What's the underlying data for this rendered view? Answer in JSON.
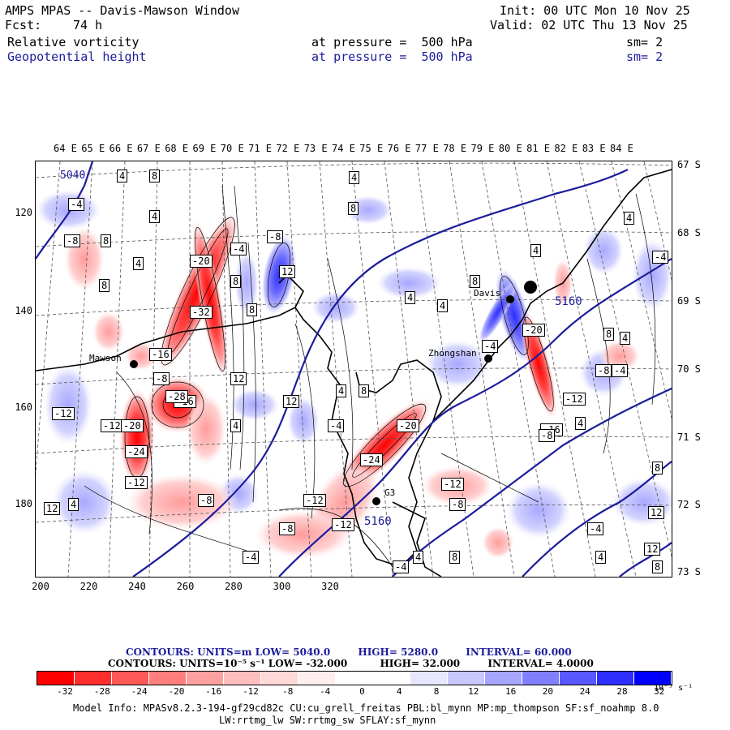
{
  "header": {
    "title": "AMPS MPAS -- Davis-Mawson Window",
    "fcst_label": "Fcst:",
    "fcst_value": "74 h",
    "init": "Init: 00 UTC Mon 10 Nov 25",
    "valid": "Valid: 02 UTC Thu 13 Nov 25",
    "field1": "Relative vorticity",
    "field1_level": "at pressure =  500 hPa",
    "field1_sm": "sm= 2",
    "field2": "Geopotential height",
    "field2_level": "at pressure =  500 hPa",
    "field2_sm": "sm= 2"
  },
  "axes": {
    "lon_labels": [
      "64 E",
      "65 E",
      "66 E",
      "67 E",
      "68 E",
      "69 E",
      "70 E",
      "71 E",
      "72 E",
      "73 E",
      "74 E",
      "75 E",
      "76 E",
      "77 E",
      "78 E",
      "79 E",
      "80 E",
      "81 E",
      "82 E",
      "83 E",
      "84 E"
    ],
    "lat_labels": [
      "67 S",
      "68 S",
      "69 S",
      "70 S",
      "71 S",
      "72 S",
      "73 S"
    ],
    "y_labels": [
      "120",
      "140",
      "160",
      "180"
    ],
    "x_labels": [
      "200",
      "220",
      "240",
      "260",
      "280",
      "300",
      "320"
    ]
  },
  "stations": {
    "mawson": "Mawson",
    "zhongshan": "Zhongshan",
    "davis": "Davis",
    "g3": "G3"
  },
  "contour_labels": {
    "height_5040": "5040",
    "height_5160_a": "5160",
    "height_5160_b": "5160",
    "vals": [
      "4",
      "8",
      "-4",
      "-8",
      "8",
      "4",
      "-8",
      "4",
      "8",
      "-20",
      "-4",
      "4",
      "12",
      "8",
      "-32",
      "-16",
      "8",
      "8",
      "4",
      "4",
      "8",
      "-4",
      "-8",
      "-12",
      "-16",
      "-20",
      "-24",
      "-28",
      "-12",
      "12",
      "-20",
      "-24",
      "-12",
      "-8",
      "-4",
      "-12",
      "-8",
      "4",
      "8",
      "-12",
      "12",
      "4",
      "8",
      "-4",
      "-12",
      "-8",
      "-4",
      "8",
      "12",
      "4",
      "4",
      "-16",
      "-20",
      "12",
      "4",
      "-4",
      "-8",
      "-4",
      "-12",
      "-8",
      "4",
      "8",
      "4",
      "4",
      "-4",
      "8",
      "12",
      "4"
    ]
  },
  "footer": {
    "contours1_prefix": "CONTOURS:  UNITS=m  LOW=  5040.0",
    "contours1_high": "HIGH=  5280.0",
    "contours1_interval": "INTERVAL=   60.000",
    "contours2_prefix": "CONTOURS:  UNITS=10⁻⁵ s⁻¹  LOW=  -32.000",
    "contours2_high": "HIGH=  32.000",
    "contours2_interval": "INTERVAL=   4.0000",
    "colorbar_labels": [
      "-32",
      "-28",
      "-24",
      "-20",
      "-16",
      "-12",
      "-8",
      "-4",
      "0",
      "4",
      "8",
      "12",
      "16",
      "20",
      "24",
      "28",
      "32"
    ],
    "colorbar_unit": "10⁻⁵ s⁻¹",
    "model_info_1": "Model Info: MPASv8.2.3-194-gf29cd82c CU:cu_grell_freitas PBL:bl_mynn MP:mp_thompson SF:sf_noahmp 8.0",
    "model_info_2": "LW:rrtmg_lw SW:rrtmg_sw SFLAY:sf_mynn"
  },
  "colors": {
    "neg_strong": "#ff0000",
    "neg_mid": "#ff7a7a",
    "neg_light": "#ffcccc",
    "pos_light": "#ccccff",
    "pos_mid": "#7a7aff",
    "pos_strong": "#0000ff",
    "height_contour": "#1c1c9c",
    "colorbar": [
      "#ff0000",
      "#ff2e2e",
      "#ff5858",
      "#ff7e7e",
      "#ffa0a0",
      "#ffbebe",
      "#ffd8d8",
      "#ffeeee",
      "#ffffff",
      "#ffffff",
      "#e6e6ff",
      "#c8c8ff",
      "#a6a6ff",
      "#8080ff",
      "#5858ff",
      "#2e2eff",
      "#0000ff"
    ]
  }
}
